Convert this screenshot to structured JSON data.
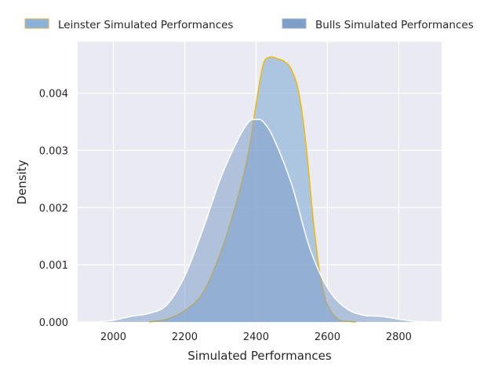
{
  "chart_data": {
    "type": "area",
    "xlabel": "Simulated Performances",
    "ylabel": "Density",
    "xlim": [
      1900,
      2920
    ],
    "ylim": [
      0,
      0.0049
    ],
    "x_ticks": [
      2000,
      2200,
      2400,
      2600,
      2800
    ],
    "y_ticks": [
      0.0,
      0.001,
      0.002,
      0.003,
      0.004
    ],
    "grid": true,
    "legend_position": "top",
    "colors": {
      "background": "#eaeaf2",
      "grid": "#ffffff",
      "leinster_fill": "#8bb2d9",
      "leinster_line": "#f0b800",
      "bulls_fill": "#7f9ec8",
      "bulls_line": "#ffffff",
      "text": "#262626"
    },
    "series": [
      {
        "name": "Leinster Simulated Performances",
        "x": [
          2100,
          2150,
          2200,
          2250,
          2300,
          2350,
          2380,
          2400,
          2420,
          2440,
          2460,
          2480,
          2500,
          2520,
          2540,
          2560,
          2580,
          2600,
          2630,
          2660,
          2680
        ],
        "y": [
          0.0,
          5e-05,
          0.0002,
          0.0005,
          0.0012,
          0.0022,
          0.003,
          0.0038,
          0.0045,
          0.00463,
          0.0046,
          0.00455,
          0.0044,
          0.004,
          0.0031,
          0.0018,
          0.0008,
          0.0003,
          5e-05,
          1e-05,
          0.0
        ]
      },
      {
        "name": "Bulls Simulated Performances",
        "x": [
          1950,
          2000,
          2050,
          2100,
          2150,
          2200,
          2250,
          2300,
          2350,
          2380,
          2400,
          2420,
          2450,
          2500,
          2550,
          2600,
          2650,
          2700,
          2750,
          2800,
          2850,
          2900
        ],
        "y": [
          0.0,
          3e-05,
          0.0001,
          0.00015,
          0.0003,
          0.0008,
          0.0016,
          0.0025,
          0.0032,
          0.0035,
          0.00354,
          0.0035,
          0.0032,
          0.0024,
          0.0013,
          0.0006,
          0.00025,
          0.00012,
          0.0001,
          5e-05,
          1e-05,
          0.0
        ]
      }
    ]
  }
}
